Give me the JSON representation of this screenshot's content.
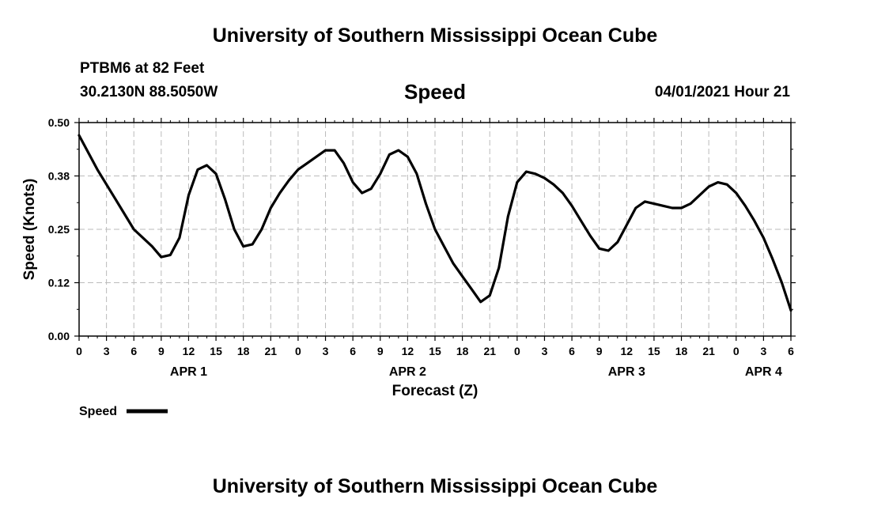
{
  "header": {
    "title_top": "University of Southern Mississippi Ocean Cube",
    "station": "PTBM6 at 82 Feet",
    "coords": "30.2130N  88.5050W",
    "chart_title": "Speed",
    "datetime": "04/01/2021 Hour 21"
  },
  "footer": {
    "title_bottom": "University of Southern Mississippi Ocean Cube"
  },
  "chart_data": {
    "type": "line",
    "title": "Speed",
    "xlabel": "Forecast (Z)",
    "ylabel": "Speed (Knots)",
    "x_unit": "hours since APR 1 00Z",
    "xlim": [
      0,
      78
    ],
    "ylim": [
      0.0,
      0.5
    ],
    "grid": true,
    "y_ticks": [
      0.0,
      0.125,
      0.25,
      0.375,
      0.5
    ],
    "y_tick_labels": [
      "0.00",
      "0.12",
      "0.25",
      "0.38",
      "0.50"
    ],
    "x_ticks": [
      0,
      3,
      6,
      9,
      12,
      15,
      18,
      21,
      24,
      27,
      30,
      33,
      36,
      39,
      42,
      45,
      48,
      51,
      54,
      57,
      60,
      63,
      66,
      69,
      72,
      75,
      78
    ],
    "x_tick_labels": [
      "0",
      "3",
      "6",
      "9",
      "12",
      "15",
      "18",
      "21",
      "0",
      "3",
      "6",
      "9",
      "12",
      "15",
      "18",
      "21",
      "0",
      "3",
      "6",
      "9",
      "12",
      "15",
      "18",
      "21",
      "0",
      "3",
      "6"
    ],
    "date_labels": [
      {
        "x": 12,
        "label": "APR 1"
      },
      {
        "x": 36,
        "label": "APR 2"
      },
      {
        "x": 60,
        "label": "APR 3"
      },
      {
        "x": 75,
        "label": "APR 4"
      }
    ],
    "legend": {
      "label": "Speed",
      "position": "bottom-left"
    },
    "series": [
      {
        "name": "Speed",
        "color": "#000000",
        "x": [
          0,
          2,
          4,
          6,
          8,
          9,
          10,
          11,
          12,
          13,
          14,
          15,
          16,
          17,
          18,
          19,
          20,
          21,
          22,
          23,
          24,
          25,
          26,
          27,
          28,
          29,
          30,
          31,
          32,
          33,
          34,
          35,
          36,
          37,
          38,
          39,
          40,
          41,
          42,
          43,
          44,
          45,
          46,
          47,
          48,
          49,
          50,
          51,
          52,
          53,
          54,
          55,
          56,
          57,
          58,
          59,
          60,
          61,
          62,
          63,
          64,
          65,
          66,
          67,
          68,
          69,
          70,
          71,
          72,
          73,
          74,
          75,
          76,
          77,
          78
        ],
        "values": [
          0.47,
          0.39,
          0.32,
          0.25,
          0.21,
          0.185,
          0.19,
          0.23,
          0.33,
          0.39,
          0.4,
          0.38,
          0.32,
          0.25,
          0.21,
          0.215,
          0.25,
          0.3,
          0.335,
          0.365,
          0.39,
          0.405,
          0.42,
          0.435,
          0.435,
          0.405,
          0.36,
          0.335,
          0.345,
          0.38,
          0.425,
          0.435,
          0.42,
          0.38,
          0.31,
          0.25,
          0.21,
          0.17,
          0.14,
          0.11,
          0.08,
          0.095,
          0.16,
          0.28,
          0.36,
          0.385,
          0.38,
          0.37,
          0.355,
          0.335,
          0.305,
          0.27,
          0.235,
          0.205,
          0.2,
          0.22,
          0.26,
          0.3,
          0.315,
          0.31,
          0.305,
          0.3,
          0.3,
          0.31,
          0.33,
          0.35,
          0.36,
          0.355,
          0.335,
          0.305,
          0.27,
          0.23,
          0.18,
          0.125,
          0.06
        ]
      }
    ]
  }
}
